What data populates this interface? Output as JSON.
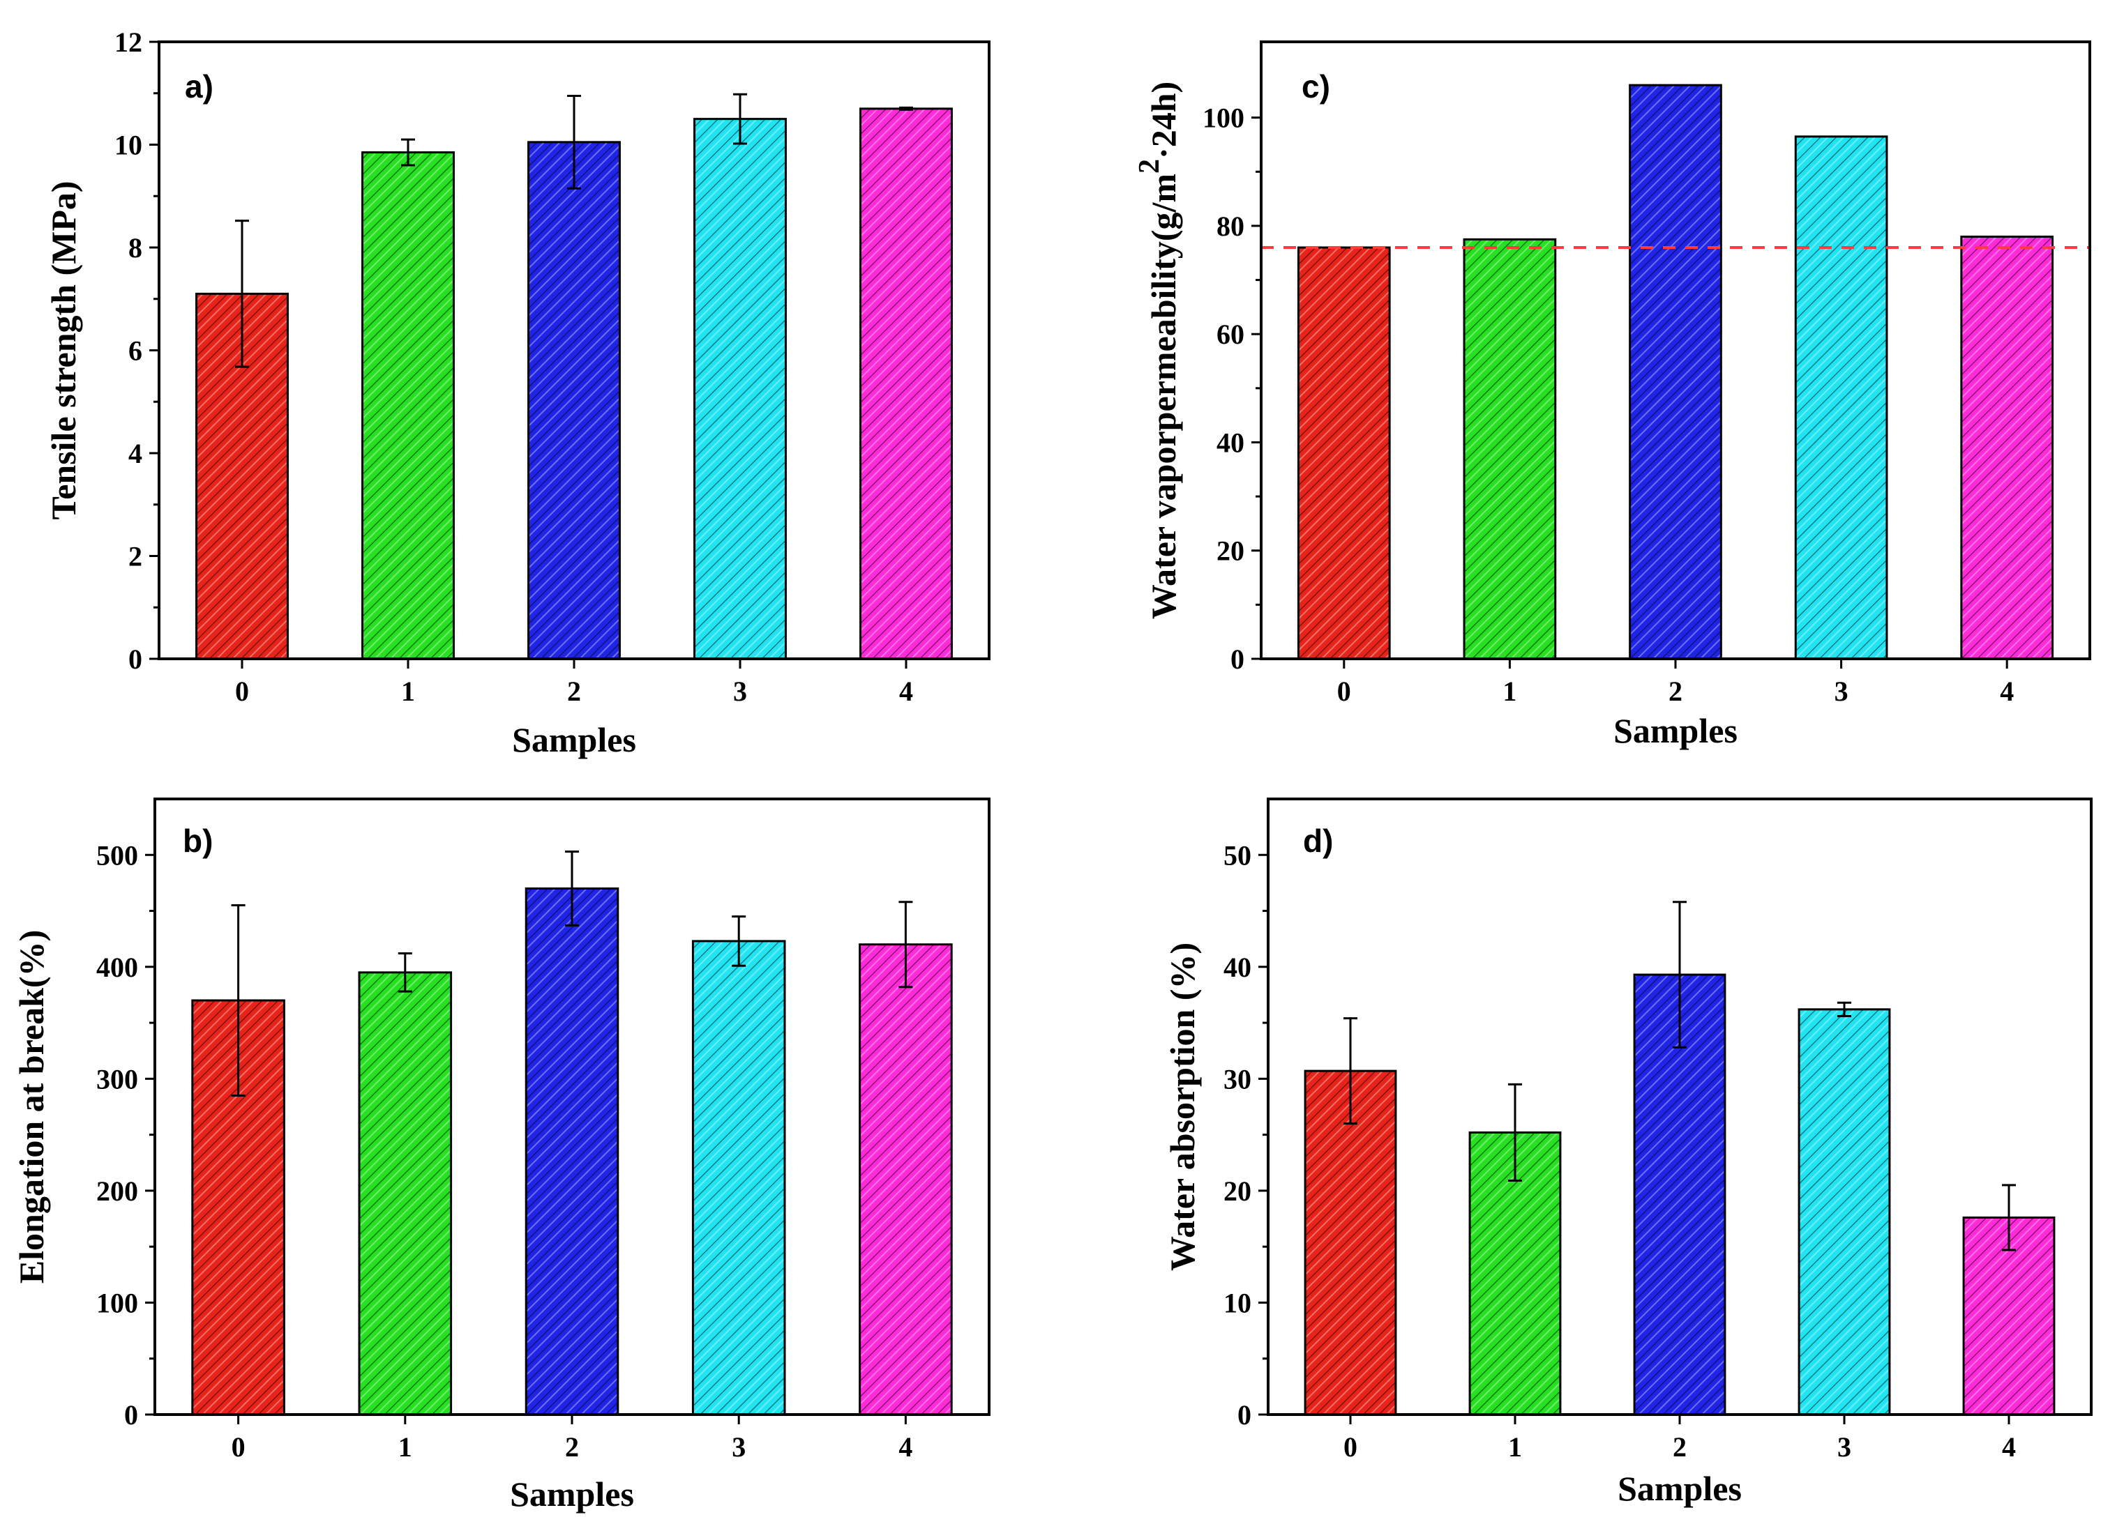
{
  "chart_data": [
    {
      "type": "bar",
      "panel_label": "a)",
      "categories": [
        "0",
        "1",
        "2",
        "3",
        "4"
      ],
      "values": [
        7.1,
        9.85,
        10.05,
        10.5,
        10.7
      ],
      "errors": [
        1.42,
        0.25,
        0.9,
        0.48,
        0.02
      ],
      "xlabel": "Samples",
      "ylabel": "Tensile strength (MPa)",
      "ylim": [
        0,
        12
      ],
      "yticks": [
        0,
        2,
        4,
        6,
        8,
        10,
        12
      ],
      "colors": [
        "#e8231a",
        "#26e021",
        "#1f24e6",
        "#21e4f2",
        "#ff2bd9"
      ]
    },
    {
      "type": "bar",
      "panel_label": "b)",
      "categories": [
        "0",
        "1",
        "2",
        "3",
        "4"
      ],
      "values": [
        370,
        395,
        470,
        423,
        420
      ],
      "errors": [
        85,
        17,
        33,
        22,
        38
      ],
      "xlabel": "Samples",
      "ylabel": "Elongation at break(%)",
      "ylim": [
        0,
        550
      ],
      "yticks": [
        0,
        100,
        200,
        300,
        400,
        500
      ],
      "colors": [
        "#e8231a",
        "#26e021",
        "#1f24e6",
        "#21e4f2",
        "#ff2bd9"
      ]
    },
    {
      "type": "bar",
      "panel_label": "c)",
      "categories": [
        "0",
        "1",
        "2",
        "3",
        "4"
      ],
      "values": [
        76,
        77.5,
        106,
        96.5,
        78
      ],
      "errors": [
        0,
        0,
        0,
        0,
        0
      ],
      "reference_line": 76,
      "reference_color": "#ff3b3b",
      "xlabel": "Samples",
      "ylabel_main": "Water vaporpermeability(g/m",
      "ylabel_sup": "2",
      "ylabel_end": "·24h)",
      "ylim": [
        0,
        114
      ],
      "yticks": [
        0,
        20,
        40,
        60,
        80,
        100
      ],
      "colors": [
        "#e8231a",
        "#26e021",
        "#1f24e6",
        "#21e4f2",
        "#ff2bd9"
      ]
    },
    {
      "type": "bar",
      "panel_label": "d)",
      "categories": [
        "0",
        "1",
        "2",
        "3",
        "4"
      ],
      "values": [
        30.7,
        25.2,
        39.3,
        36.2,
        17.6
      ],
      "errors": [
        4.7,
        4.3,
        6.5,
        0.6,
        2.9
      ],
      "xlabel": "Samples",
      "ylabel": "Water absorption (%)",
      "ylim": [
        0,
        55
      ],
      "yticks": [
        0,
        10,
        20,
        30,
        40,
        50
      ],
      "colors": [
        "#e8231a",
        "#26e021",
        "#1f24e6",
        "#21e4f2",
        "#ff2bd9"
      ]
    }
  ]
}
